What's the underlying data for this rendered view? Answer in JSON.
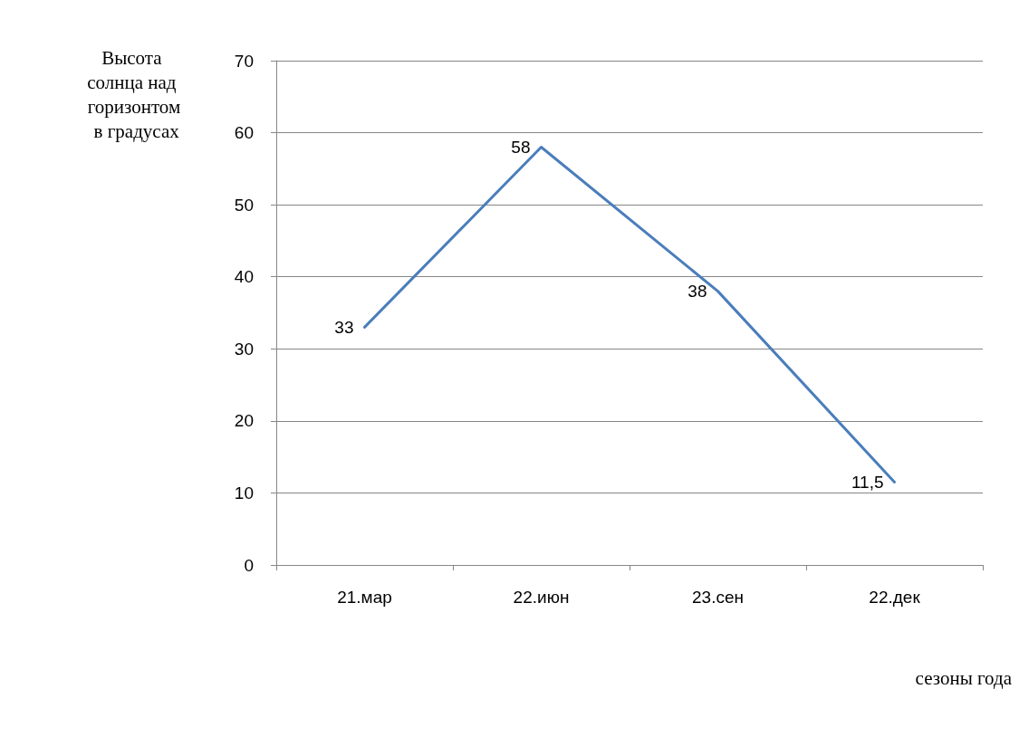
{
  "chart_data": {
    "type": "line",
    "ylabel": "Высота солнца над горизонтом в градусах",
    "xlabel": "сезоны года",
    "categories": [
      "21.мар",
      "22.июн",
      "23.сен",
      "22.дек"
    ],
    "series": [
      {
        "color": "#4a7ebb",
        "values": [
          33,
          58,
          38,
          11.5
        ],
        "value_labels": [
          "33",
          "58",
          "38",
          "11,5"
        ]
      }
    ],
    "ylim": [
      0,
      70
    ],
    "yticks": [
      0,
      10,
      20,
      30,
      40,
      50,
      60,
      70
    ],
    "grid": "y",
    "marker": "none",
    "line_style": "solid"
  }
}
